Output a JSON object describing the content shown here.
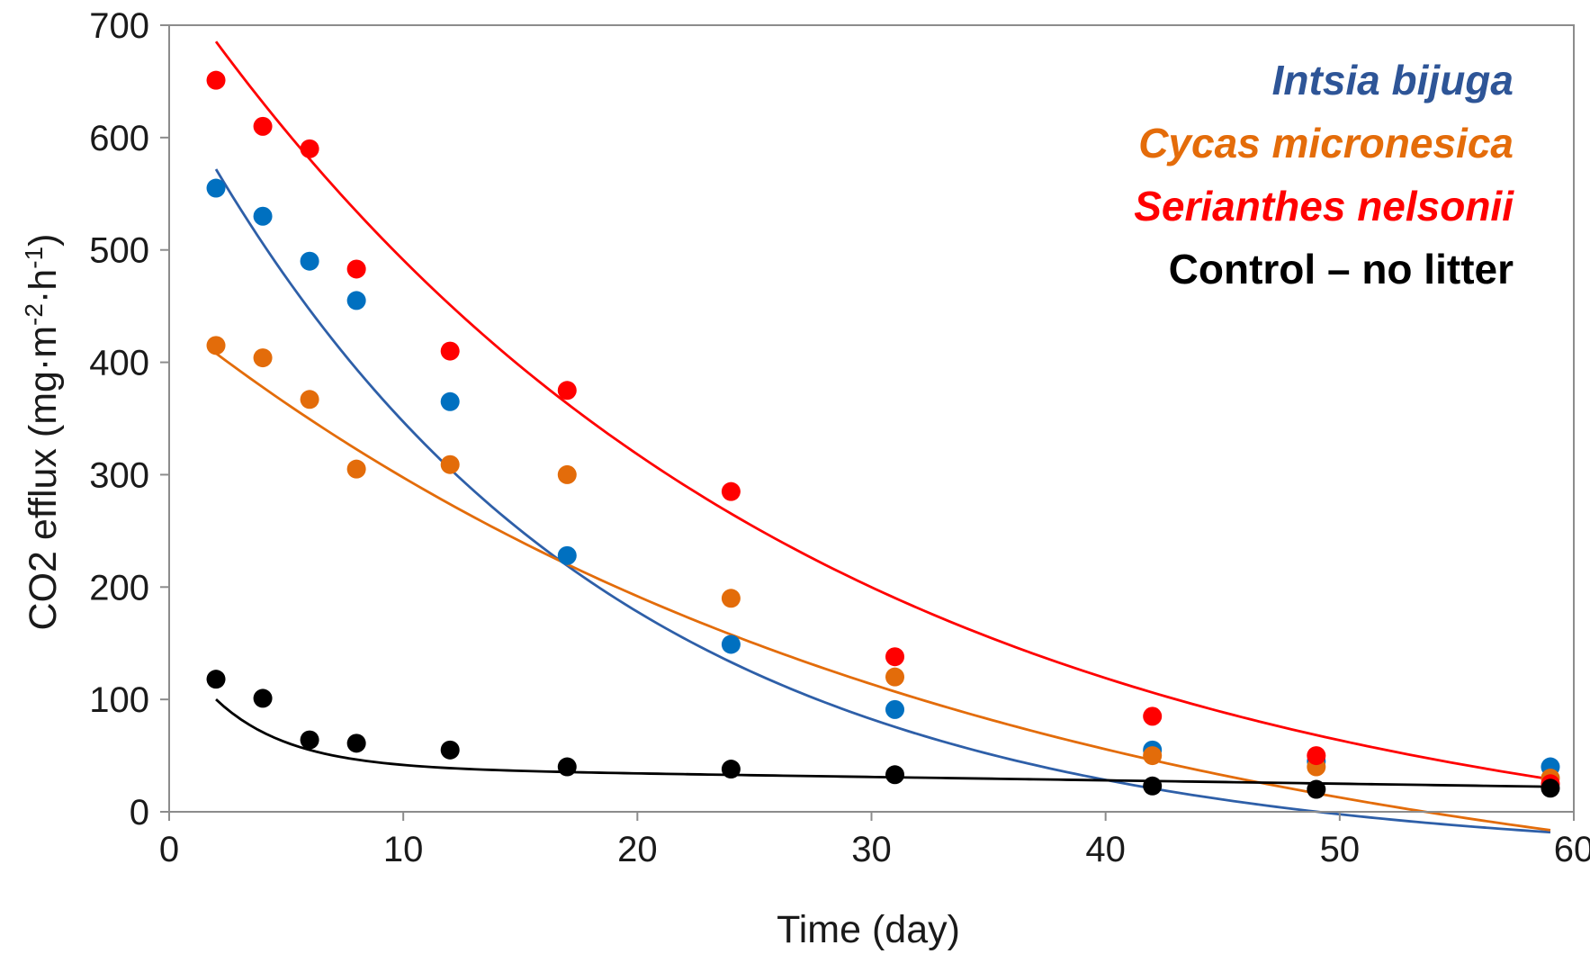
{
  "chart_data": {
    "type": "scatter",
    "xlabel": "Time (day)",
    "ylabel": {
      "prefix": "CO2 efflux (mg·m",
      "sup1": "-2",
      "mid": "·h",
      "sup2": "-1",
      "suffix": ")"
    },
    "xlim": [
      0,
      60
    ],
    "ylim": [
      0,
      700
    ],
    "xticks": [
      0,
      10,
      20,
      30,
      40,
      50,
      60
    ],
    "yticks": [
      0,
      100,
      200,
      300,
      400,
      500,
      600,
      700
    ],
    "grid": false,
    "legend_position": "top-right",
    "x": [
      2,
      4,
      6,
      8,
      12,
      17,
      24,
      31,
      42,
      49,
      59
    ],
    "series": [
      {
        "name": "Intsia bijuga",
        "color": "#0070c0",
        "fit_color": "#2e5fa8",
        "legend_color": "#2e5597",
        "italic": true,
        "values": [
          555,
          530,
          490,
          455,
          365,
          228,
          149,
          91,
          55,
          45,
          40
        ],
        "trend": {
          "type": "exponential",
          "a": 688,
          "k": 0.057,
          "c": -42
        }
      },
      {
        "name": "Cycas micronesica",
        "color": "#e36c0a",
        "fit_color": "#e36c0a",
        "legend_color": "#e46c0a",
        "italic": true,
        "values": [
          415,
          404,
          367,
          305,
          309,
          300,
          190,
          120,
          50,
          40,
          30
        ],
        "trend": {
          "type": "exponential",
          "a": 550,
          "k": 0.03,
          "c": -110
        }
      },
      {
        "name": "Serianthes nelsonii",
        "color": "#ff0000",
        "fit_color": "#ff0000",
        "legend_color": "#ff0000",
        "italic": true,
        "values": [
          651,
          610,
          590,
          483,
          410,
          375,
          285,
          138,
          85,
          50,
          25
        ],
        "trend": {
          "type": "exponential",
          "a": 800,
          "k": 0.038,
          "c": -56
        }
      },
      {
        "name": "Control – no litter",
        "color": "#000000",
        "fit_color": "#000000",
        "legend_color": "#000000",
        "italic": false,
        "values": [
          118,
          101,
          64,
          61,
          55,
          40,
          38,
          33,
          23,
          20,
          21
        ],
        "trend": {
          "type": "exponential-plus-linear",
          "a": 115,
          "k": 0.32,
          "c": 40,
          "m": -0.3
        }
      }
    ]
  }
}
